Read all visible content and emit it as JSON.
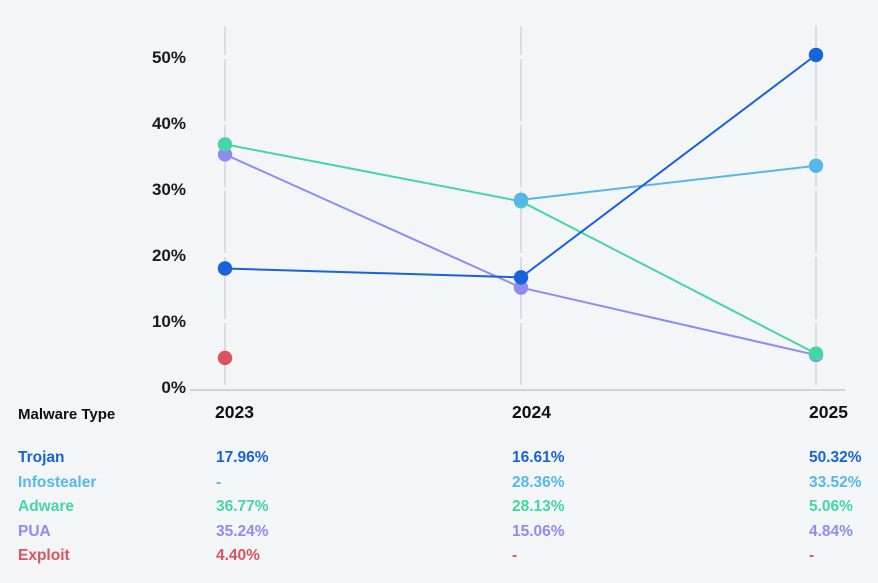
{
  "chart_data": {
    "type": "line",
    "title": "",
    "xlabel": "",
    "ylabel": "",
    "categories": [
      "2023",
      "2024",
      "2025"
    ],
    "yticks": [
      "0%",
      "10%",
      "20%",
      "30%",
      "40%",
      "50%"
    ],
    "ylim": [
      0,
      50
    ],
    "grid": "vertical-dashed",
    "legend_position": "table-below",
    "series": [
      {
        "name": "Trojan",
        "color": "#1763dc",
        "values": [
          17.96,
          16.61,
          50.32
        ]
      },
      {
        "name": "Infostealer",
        "color": "#56b8e9",
        "values": [
          null,
          28.36,
          33.52
        ]
      },
      {
        "name": "Adware",
        "color": "#44d7a4",
        "values": [
          36.77,
          28.13,
          5.06
        ]
      },
      {
        "name": "PUA",
        "color": "#8f8cf1",
        "values": [
          35.24,
          15.06,
          4.84
        ]
      },
      {
        "name": "Exploit",
        "color": "#db5260",
        "values": [
          4.4,
          null,
          null
        ]
      }
    ]
  },
  "colors": {
    "background": "#f4f5f7",
    "gridline": "#dadce0",
    "axis_line": "#d2d4d8",
    "axis_text": "#1a1b1f"
  },
  "table": {
    "header": {
      "type_label": "Malware Type",
      "years": [
        "2023",
        "2024",
        "2025"
      ]
    },
    "rows": [
      {
        "label": "Trojan",
        "color": "#1763dc",
        "values": [
          "17.96%",
          "16.61%",
          "50.32%"
        ]
      },
      {
        "label": "Infostealer",
        "color": "#56b8e9",
        "values": [
          "-",
          "28.36%",
          "33.52%"
        ]
      },
      {
        "label": "Adware",
        "color": "#44d7a4",
        "values": [
          "36.77%",
          "28.13%",
          "5.06%"
        ]
      },
      {
        "label": "PUA",
        "color": "#8f8cf1",
        "values": [
          "35.24%",
          "15.06%",
          "4.84%"
        ]
      },
      {
        "label": "Exploit",
        "color": "#db5260",
        "values": [
          "4.40%",
          "-",
          "-"
        ]
      }
    ]
  }
}
